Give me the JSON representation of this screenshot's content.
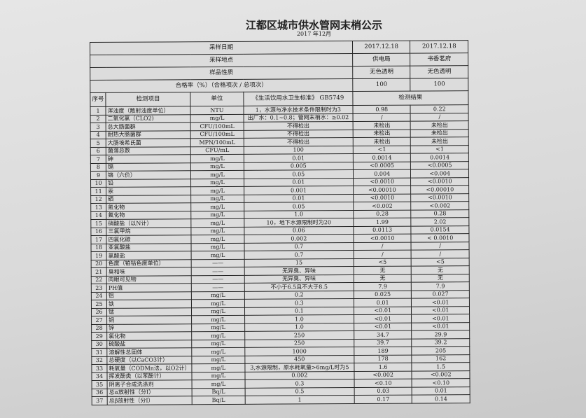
{
  "title": "江都区城市供水管网末梢公示",
  "subtitle": "2017 年12月",
  "summary": [
    {
      "label": "采样日期",
      "v1": "2017.12.18",
      "v2": "2017.12.18"
    },
    {
      "label": "采样地点",
      "v1": "供电局",
      "v2": "书香茗府"
    },
    {
      "label": "样品性质",
      "v1": "无色透明",
      "v2": "无色透明"
    },
    {
      "label": "合格率（%）（合格项次 / 总项次）",
      "v1": "100",
      "v2": "100"
    }
  ],
  "columns": {
    "no": "序号",
    "item": "检测项目",
    "unit": "单位",
    "standard": "《生活饮用水卫生标准》 GB5749",
    "result": "检测结果"
  },
  "rows": [
    [
      "1",
      "浑浊度（散射浊度单位）",
      "NTU",
      "1，水源与净水技术条件限制时为3",
      "0.98",
      "0.22"
    ],
    [
      "2",
      "二氧化氯（CLO2)",
      "mg/L",
      "出厂水：0.1~0.8；管网末梢水：≥0.02",
      "/",
      "/"
    ],
    [
      "3",
      "总大肠菌群",
      "CFU/100mL",
      "不得检出",
      "未检出",
      "未检出"
    ],
    [
      "4",
      "耐热大肠菌群",
      "CFU/100mL",
      "不得检出",
      "未检出",
      "未检出"
    ],
    [
      "5",
      "大肠埃希氏菌",
      "MPN/100mL",
      "不得检出",
      "未检出",
      "未检出"
    ],
    [
      "6",
      "菌落总数",
      "CFU/mL",
      "100",
      "<1",
      "<1"
    ],
    [
      "7",
      "砷",
      "mg/L",
      "0.01",
      "0.0014",
      "0.0014"
    ],
    [
      "8",
      "镉",
      "mg/L",
      "0.005",
      "<0.0005",
      "<0.0005"
    ],
    [
      "9",
      "铬（六价）",
      "mg/L",
      "0.05",
      "0.004",
      "<0.004"
    ],
    [
      "10",
      "铅",
      "mg/L",
      "0.01",
      "<0.0010",
      "<0.0010"
    ],
    [
      "11",
      "汞",
      "mg/L",
      "0.001",
      "<0.00010",
      "<0.00010"
    ],
    [
      "12",
      "硒",
      "mg/L",
      "0.01",
      "<0.0010",
      "<0.0010"
    ],
    [
      "13",
      "氰化物",
      "mg/L",
      "0.05",
      "<0.002",
      "<0.002"
    ],
    [
      "14",
      "氟化物",
      "mg/L",
      "1.0",
      "0.28",
      "0.28"
    ],
    [
      "15",
      "硝酸盐（以N计）",
      "mg/L",
      "10，地下水源限制时为20",
      "1.99",
      "2.02"
    ],
    [
      "16",
      "三氯甲烷",
      "mg/L",
      "0.06",
      "0.0113",
      "0.0154"
    ],
    [
      "17",
      "四氯化碳",
      "mg/L",
      "0.002",
      "<0.0010",
      "< 0.0010"
    ],
    [
      "18",
      "亚氯酸盐",
      "mg/L",
      "0.7",
      "/",
      "/"
    ],
    [
      "19",
      "氯酸盐",
      "mg/L",
      "0.7",
      "/",
      "/"
    ],
    [
      "20",
      "色度（铂钴色度单位）",
      "——",
      "15",
      "<5",
      "<5"
    ],
    [
      "21",
      "臭和味",
      "——",
      "无异臭、异味",
      "无",
      "无"
    ],
    [
      "22",
      "肉眼可见物",
      "——",
      "无异臭、异味",
      "无",
      "无"
    ],
    [
      "23",
      "PH值",
      "——",
      "不小于6.5且不大于8.5",
      "7.9",
      "7.9"
    ],
    [
      "24",
      "铝",
      "mg/L",
      "0.2",
      "0.025",
      "0.027"
    ],
    [
      "25",
      "铁",
      "mg/L",
      "0.3",
      "0.01",
      "<0.01"
    ],
    [
      "26",
      "锰",
      "mg/L",
      "0.1",
      "<0.01",
      "<0.01"
    ],
    [
      "27",
      "铜",
      "mg/L",
      "1.0",
      "<0.01",
      "<0.01"
    ],
    [
      "28",
      "锌",
      "mg/L",
      "1.0",
      "<0.01",
      "<0.01"
    ],
    [
      "29",
      "氯化物",
      "mg/L",
      "250",
      "34.7",
      "29.9"
    ],
    [
      "30",
      "硫酸盐",
      "mg/L",
      "250",
      "39.7",
      "39.2"
    ],
    [
      "31",
      "溶解性总固体",
      "mg/L",
      "1000",
      "189",
      "205"
    ],
    [
      "32",
      "总硬度（以CaCO3计）",
      "mg/L",
      "450",
      "178",
      "162"
    ],
    [
      "33",
      "耗氧量（CODMn法，以O2计）",
      "mg/L",
      "3,水源限制，原水耗氧量>6mg/L时为5",
      "1.6",
      "1.5"
    ],
    [
      "34",
      "挥发酚类（以苯酚计）",
      "mg/L",
      "0.002",
      "<0.002",
      "<0.002"
    ],
    [
      "35",
      "阴离子合成洗涤剂",
      "mg/L",
      "0.3",
      "<0.10",
      "<0.10"
    ],
    [
      "36",
      "总α放射性（分Ⅰ）",
      "Bq/L",
      "0.5",
      "0.03",
      "0.01"
    ],
    [
      "37",
      "总β放射性（分Ⅰ）",
      "Bq/L",
      "1",
      "0.17",
      "0.14"
    ]
  ]
}
